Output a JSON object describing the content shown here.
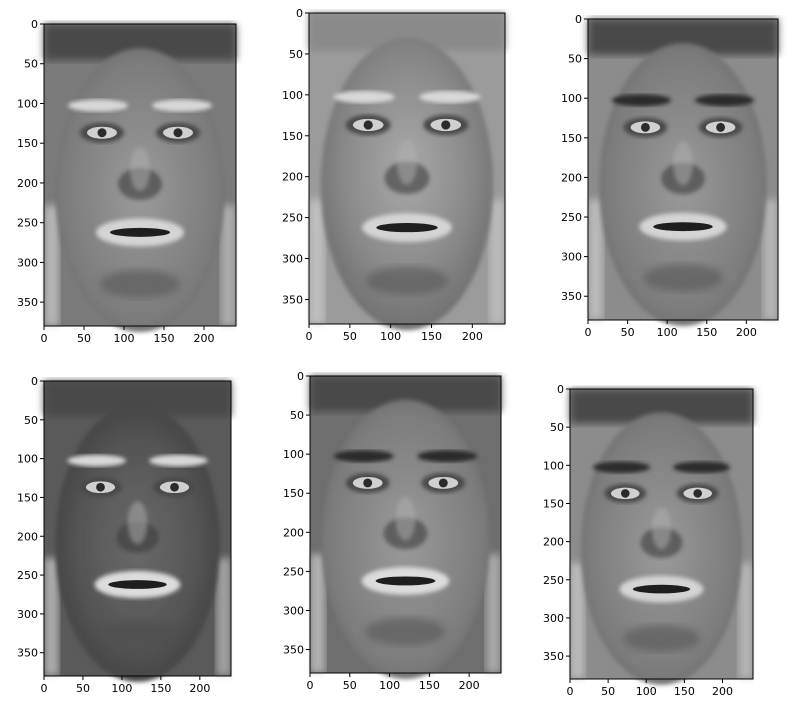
{
  "figure": {
    "x_ticks": [
      "0",
      "50",
      "100",
      "150",
      "200"
    ],
    "y_ticks": [
      "0",
      "50",
      "100",
      "150",
      "200",
      "250",
      "300",
      "350"
    ],
    "panels": [
      {
        "id": "face-1",
        "image": "grayscale-eigenface",
        "image_width": 240,
        "image_height": 380,
        "tone": "dark-eyes-light-brows"
      },
      {
        "id": "face-2",
        "image": "grayscale-eigenface",
        "image_width": 240,
        "image_height": 380,
        "tone": "light-open-mouth"
      },
      {
        "id": "face-3",
        "image": "grayscale-eigenface",
        "image_width": 240,
        "image_height": 380,
        "tone": "dark-brows-wide-eyes"
      },
      {
        "id": "face-4",
        "image": "grayscale-eigenface",
        "image_width": 240,
        "image_height": 380,
        "tone": "light-brows-dark-face"
      },
      {
        "id": "face-5",
        "image": "grayscale-eigenface",
        "image_width": 240,
        "image_height": 380,
        "tone": "dark-forehead-furrows"
      },
      {
        "id": "face-6",
        "image": "grayscale-eigenface",
        "image_width": 240,
        "image_height": 380,
        "tone": "dark-brows-wide-eyes"
      }
    ]
  }
}
